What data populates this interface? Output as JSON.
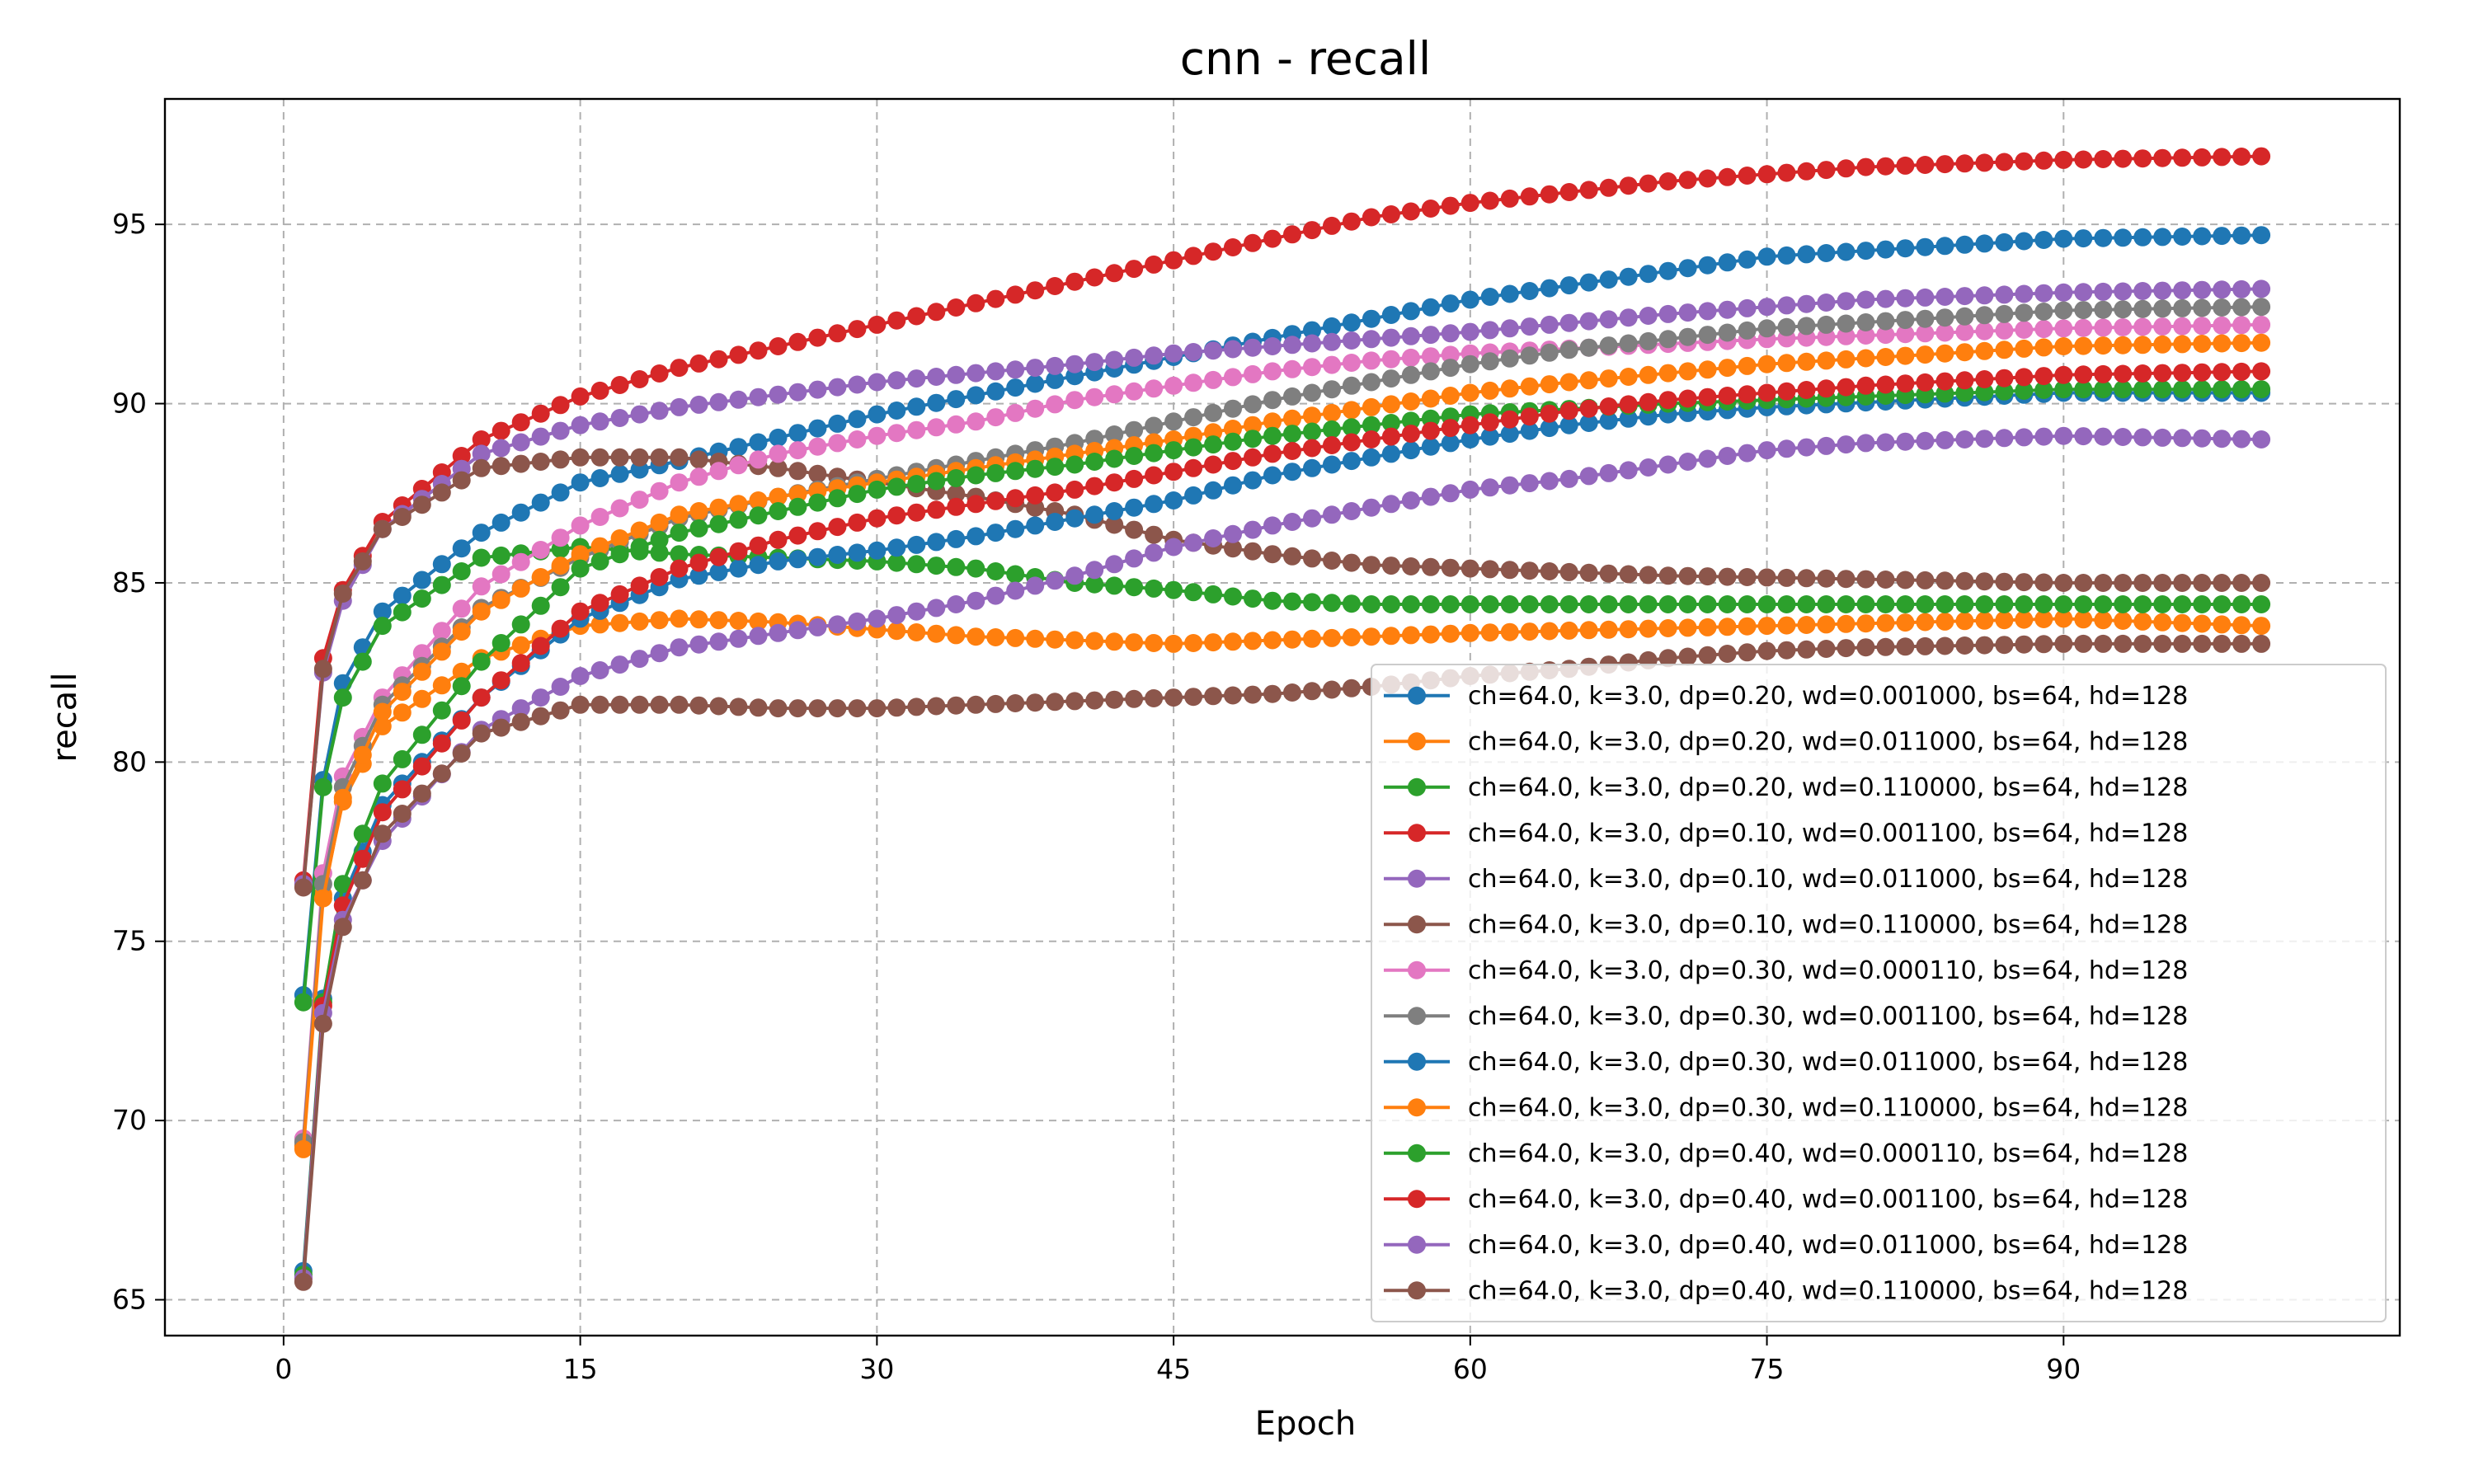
{
  "chart_data": {
    "type": "line",
    "title": "cnn - recall",
    "xlabel": "Epoch",
    "ylabel": "recall",
    "xlim": [
      -6.0,
      107.0
    ],
    "ylim": [
      64.0,
      98.5
    ],
    "xticks": [
      0,
      15,
      30,
      45,
      60,
      75,
      90
    ],
    "yticks": [
      65,
      70,
      75,
      80,
      85,
      90,
      95
    ],
    "grid": true,
    "legend_position": "lower-right",
    "markers": "circle",
    "series": [
      {
        "name": "ch=64.0, k=3.0, dp=0.20, wd=0.001000, bs=64, hd=128",
        "color": "#1f77b4",
        "anchors": [
          [
            1,
            73.5
          ],
          [
            2,
            79.5
          ],
          [
            3,
            82.2
          ],
          [
            5,
            84.2
          ],
          [
            10,
            86.4
          ],
          [
            15,
            87.8
          ],
          [
            20,
            88.4
          ],
          [
            30,
            89.7
          ],
          [
            45,
            91.3
          ],
          [
            60,
            92.9
          ],
          [
            75,
            94.1
          ],
          [
            90,
            94.6
          ],
          [
            100,
            94.7
          ]
        ]
      },
      {
        "name": "ch=64.0, k=3.0, dp=0.20, wd=0.011000, bs=64, hd=128",
        "color": "#ff7f0e",
        "anchors": [
          [
            1,
            69.3
          ],
          [
            2,
            76.3
          ],
          [
            3,
            78.9
          ],
          [
            5,
            81.0
          ],
          [
            10,
            82.9
          ],
          [
            15,
            83.8
          ],
          [
            20,
            84.0
          ],
          [
            25,
            83.9
          ],
          [
            30,
            83.7
          ],
          [
            35,
            83.5
          ],
          [
            40,
            83.4
          ],
          [
            45,
            83.3
          ],
          [
            50,
            83.4
          ],
          [
            60,
            83.6
          ],
          [
            75,
            83.8
          ],
          [
            90,
            84.0
          ],
          [
            100,
            83.8
          ]
        ]
      },
      {
        "name": "ch=64.0, k=3.0, dp=0.20, wd=0.110000, bs=64, hd=128",
        "color": "#2ca02c",
        "anchors": [
          [
            1,
            73.3
          ],
          [
            2,
            79.3
          ],
          [
            3,
            81.8
          ],
          [
            5,
            83.8
          ],
          [
            10,
            85.7
          ],
          [
            15,
            86.0
          ],
          [
            20,
            85.8
          ],
          [
            25,
            85.7
          ],
          [
            30,
            85.6
          ],
          [
            35,
            85.4
          ],
          [
            40,
            85.0
          ],
          [
            45,
            84.8
          ],
          [
            50,
            84.5
          ],
          [
            55,
            84.4
          ],
          [
            60,
            84.4
          ],
          [
            75,
            84.4
          ],
          [
            90,
            84.4
          ],
          [
            100,
            84.4
          ]
        ]
      },
      {
        "name": "ch=64.0, k=3.0, dp=0.10, wd=0.001100, bs=64, hd=128",
        "color": "#d62728",
        "anchors": [
          [
            1,
            76.7
          ],
          [
            2,
            82.9
          ],
          [
            3,
            84.8
          ],
          [
            5,
            86.7
          ],
          [
            10,
            89.0
          ],
          [
            15,
            90.2
          ],
          [
            20,
            91.0
          ],
          [
            25,
            91.6
          ],
          [
            30,
            92.2
          ],
          [
            35,
            92.8
          ],
          [
            40,
            93.4
          ],
          [
            45,
            94.0
          ],
          [
            50,
            94.6
          ],
          [
            55,
            95.2
          ],
          [
            60,
            95.6
          ],
          [
            65,
            95.9
          ],
          [
            70,
            96.2
          ],
          [
            75,
            96.4
          ],
          [
            80,
            96.6
          ],
          [
            90,
            96.8
          ],
          [
            100,
            96.9
          ]
        ]
      },
      {
        "name": "ch=64.0, k=3.0, dp=0.10, wd=0.011000, bs=64, hd=128",
        "color": "#9467bd",
        "anchors": [
          [
            1,
            76.6
          ],
          [
            2,
            82.5
          ],
          [
            3,
            84.5
          ],
          [
            5,
            86.5
          ],
          [
            10,
            88.6
          ],
          [
            15,
            89.4
          ],
          [
            20,
            89.9
          ],
          [
            30,
            90.6
          ],
          [
            40,
            91.1
          ],
          [
            45,
            91.4
          ],
          [
            55,
            91.8
          ],
          [
            60,
            92.0
          ],
          [
            70,
            92.5
          ],
          [
            75,
            92.7
          ],
          [
            80,
            92.9
          ],
          [
            90,
            93.1
          ],
          [
            100,
            93.2
          ]
        ]
      },
      {
        "name": "ch=64.0, k=3.0, dp=0.10, wd=0.110000, bs=64, hd=128",
        "color": "#8c564b",
        "anchors": [
          [
            1,
            76.5
          ],
          [
            2,
            82.6
          ],
          [
            3,
            84.7
          ],
          [
            5,
            86.5
          ],
          [
            10,
            88.2
          ],
          [
            15,
            88.5
          ],
          [
            20,
            88.5
          ],
          [
            25,
            88.2
          ],
          [
            30,
            87.8
          ],
          [
            35,
            87.4
          ],
          [
            40,
            86.9
          ],
          [
            45,
            86.2
          ],
          [
            50,
            85.8
          ],
          [
            55,
            85.5
          ],
          [
            60,
            85.4
          ],
          [
            70,
            85.2
          ],
          [
            80,
            85.1
          ],
          [
            90,
            85.0
          ],
          [
            100,
            85.0
          ]
        ]
      },
      {
        "name": "ch=64.0, k=3.0, dp=0.30, wd=0.000110, bs=64, hd=128",
        "color": "#e377c2",
        "anchors": [
          [
            1,
            69.5
          ],
          [
            2,
            76.9
          ],
          [
            3,
            79.6
          ],
          [
            5,
            81.8
          ],
          [
            10,
            84.9
          ],
          [
            15,
            86.6
          ],
          [
            20,
            87.8
          ],
          [
            25,
            88.6
          ],
          [
            30,
            89.1
          ],
          [
            35,
            89.5
          ],
          [
            40,
            90.1
          ],
          [
            45,
            90.5
          ],
          [
            50,
            90.9
          ],
          [
            55,
            91.2
          ],
          [
            60,
            91.4
          ],
          [
            75,
            91.8
          ],
          [
            90,
            92.1
          ],
          [
            100,
            92.2
          ]
        ]
      },
      {
        "name": "ch=64.0, k=3.0, dp=0.30, wd=0.001100, bs=64, hd=128",
        "color": "#7f7f7f",
        "anchors": [
          [
            1,
            69.4
          ],
          [
            2,
            76.6
          ],
          [
            3,
            79.3
          ],
          [
            5,
            81.6
          ],
          [
            10,
            84.3
          ],
          [
            15,
            85.7
          ],
          [
            20,
            86.8
          ],
          [
            25,
            87.4
          ],
          [
            30,
            87.9
          ],
          [
            35,
            88.4
          ],
          [
            40,
            88.9
          ],
          [
            45,
            89.5
          ],
          [
            50,
            90.1
          ],
          [
            55,
            90.6
          ],
          [
            60,
            91.1
          ],
          [
            65,
            91.5
          ],
          [
            75,
            92.1
          ],
          [
            90,
            92.6
          ],
          [
            100,
            92.7
          ]
        ]
      },
      {
        "name": "ch=64.0, k=3.0, dp=0.30, wd=0.011000, bs=64, hd=128",
        "color": "#1f77b4",
        "anchors": [
          [
            1,
            65.8
          ],
          [
            2,
            73.4
          ],
          [
            3,
            76.2
          ],
          [
            5,
            78.8
          ],
          [
            10,
            81.8
          ],
          [
            15,
            84.0
          ],
          [
            20,
            85.1
          ],
          [
            25,
            85.6
          ],
          [
            30,
            85.9
          ],
          [
            35,
            86.3
          ],
          [
            40,
            86.8
          ],
          [
            45,
            87.3
          ],
          [
            50,
            88.0
          ],
          [
            55,
            88.5
          ],
          [
            60,
            89.0
          ],
          [
            65,
            89.4
          ],
          [
            70,
            89.7
          ],
          [
            75,
            89.9
          ],
          [
            90,
            90.3
          ],
          [
            100,
            90.3
          ]
        ]
      },
      {
        "name": "ch=64.0, k=3.0, dp=0.30, wd=0.110000, bs=64, hd=128",
        "color": "#ff7f0e",
        "anchors": [
          [
            1,
            69.2
          ],
          [
            2,
            76.2
          ],
          [
            3,
            79.0
          ],
          [
            5,
            81.4
          ],
          [
            10,
            84.2
          ],
          [
            15,
            85.8
          ],
          [
            20,
            86.9
          ],
          [
            25,
            87.4
          ],
          [
            30,
            87.8
          ],
          [
            35,
            88.2
          ],
          [
            40,
            88.6
          ],
          [
            45,
            89.0
          ],
          [
            50,
            89.5
          ],
          [
            55,
            89.9
          ],
          [
            60,
            90.3
          ],
          [
            65,
            90.6
          ],
          [
            75,
            91.1
          ],
          [
            90,
            91.6
          ],
          [
            100,
            91.7
          ]
        ]
      },
      {
        "name": "ch=64.0, k=3.0, dp=0.40, wd=0.000110, bs=64, hd=128",
        "color": "#2ca02c",
        "anchors": [
          [
            1,
            65.7
          ],
          [
            2,
            73.3
          ],
          [
            3,
            76.6
          ],
          [
            5,
            79.4
          ],
          [
            10,
            82.8
          ],
          [
            15,
            85.4
          ],
          [
            20,
            86.4
          ],
          [
            25,
            87.0
          ],
          [
            30,
            87.6
          ],
          [
            35,
            88.0
          ],
          [
            40,
            88.3
          ],
          [
            45,
            88.7
          ],
          [
            50,
            89.1
          ],
          [
            55,
            89.4
          ],
          [
            60,
            89.7
          ],
          [
            70,
            90.0
          ],
          [
            80,
            90.2
          ],
          [
            90,
            90.4
          ],
          [
            100,
            90.4
          ]
        ]
      },
      {
        "name": "ch=64.0, k=3.0, dp=0.40, wd=0.001100, bs=64, hd=128",
        "color": "#d62728",
        "anchors": [
          [
            1,
            65.6
          ],
          [
            2,
            73.2
          ],
          [
            3,
            76.0
          ],
          [
            5,
            78.6
          ],
          [
            10,
            81.8
          ],
          [
            15,
            84.2
          ],
          [
            20,
            85.4
          ],
          [
            25,
            86.2
          ],
          [
            30,
            86.8
          ],
          [
            35,
            87.2
          ],
          [
            40,
            87.6
          ],
          [
            45,
            88.1
          ],
          [
            50,
            88.6
          ],
          [
            55,
            89.0
          ],
          [
            60,
            89.4
          ],
          [
            65,
            89.8
          ],
          [
            70,
            90.1
          ],
          [
            75,
            90.3
          ],
          [
            80,
            90.5
          ],
          [
            90,
            90.8
          ],
          [
            100,
            90.9
          ]
        ]
      },
      {
        "name": "ch=64.0, k=3.0, dp=0.40, wd=0.011000, bs=64, hd=128",
        "color": "#9467bd",
        "anchors": [
          [
            1,
            65.6
          ],
          [
            2,
            73.0
          ],
          [
            3,
            75.6
          ],
          [
            5,
            77.8
          ],
          [
            10,
            80.9
          ],
          [
            15,
            82.4
          ],
          [
            20,
            83.2
          ],
          [
            25,
            83.6
          ],
          [
            30,
            84.0
          ],
          [
            35,
            84.5
          ],
          [
            40,
            85.2
          ],
          [
            45,
            86.0
          ],
          [
            50,
            86.6
          ],
          [
            55,
            87.1
          ],
          [
            60,
            87.6
          ],
          [
            65,
            87.9
          ],
          [
            70,
            88.3
          ],
          [
            75,
            88.7
          ],
          [
            80,
            88.9
          ],
          [
            90,
            89.1
          ],
          [
            100,
            89.0
          ]
        ]
      },
      {
        "name": "ch=64.0, k=3.0, dp=0.40, wd=0.110000, bs=64, hd=128",
        "color": "#8c564b",
        "anchors": [
          [
            1,
            65.5
          ],
          [
            2,
            72.7
          ],
          [
            3,
            75.4
          ],
          [
            5,
            78.0
          ],
          [
            10,
            80.8
          ],
          [
            15,
            81.6
          ],
          [
            20,
            81.6
          ],
          [
            25,
            81.5
          ],
          [
            30,
            81.5
          ],
          [
            35,
            81.6
          ],
          [
            40,
            81.7
          ],
          [
            45,
            81.8
          ],
          [
            50,
            81.9
          ],
          [
            55,
            82.1
          ],
          [
            60,
            82.4
          ],
          [
            65,
            82.6
          ],
          [
            70,
            82.9
          ],
          [
            75,
            83.1
          ],
          [
            80,
            83.2
          ],
          [
            90,
            83.3
          ],
          [
            100,
            83.3
          ]
        ]
      }
    ]
  }
}
